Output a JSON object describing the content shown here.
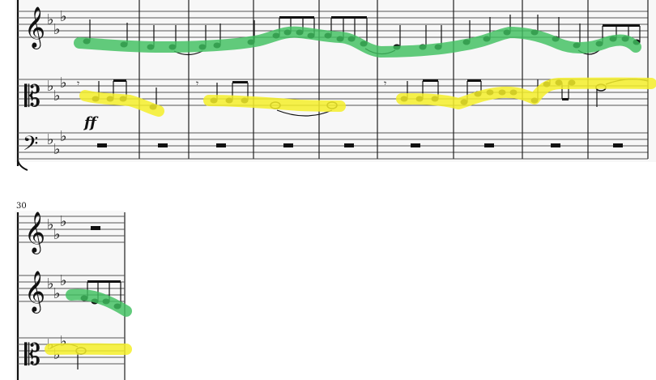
{
  "score": {
    "systems": [
      {
        "staves": [
          {
            "clef": "treble",
            "key_signature": "E-flat major (3 flats)",
            "highlight": "green"
          },
          {
            "clef": "alto",
            "key_signature": "E-flat major (3 flats)",
            "highlight": "yellow",
            "dynamic": "ff"
          },
          {
            "clef": "bass",
            "key_signature": "E-flat major (3 flats)",
            "content": "whole-measure rests"
          }
        ],
        "measure_count": 9
      },
      {
        "start_measure_number": "30",
        "staves": [
          {
            "clef": "treble",
            "key_signature": "E-flat major (3 flats)",
            "content": "whole-measure rest"
          },
          {
            "clef": "treble",
            "key_signature": "E-flat major (3 flats)",
            "highlight": "green"
          },
          {
            "clef": "alto",
            "key_signature": "E-flat major (3 flats)",
            "highlight": "yellow"
          }
        ],
        "measure_count": 1
      }
    ],
    "highlight_colors": {
      "green": "#3fbf5f",
      "yellow": "#f4ee2a"
    },
    "glyphs": {
      "treble_clef": "𝄞",
      "alto_clef": "𝄡",
      "bass_clef": "𝄢",
      "flat": "♭"
    },
    "texts": {
      "dynamic_ff": "ff",
      "measure_30": "30"
    }
  }
}
